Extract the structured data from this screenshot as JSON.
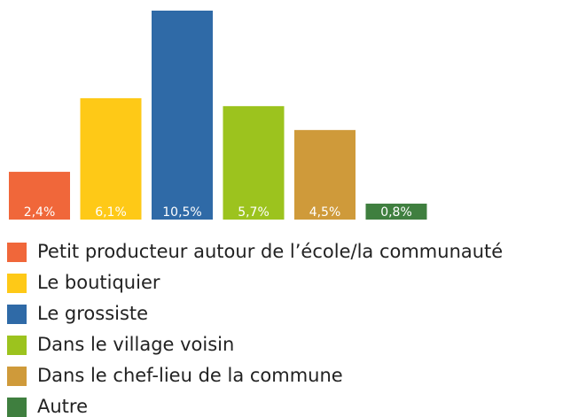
{
  "chart_data": {
    "type": "bar",
    "categories": [
      "Petit producteur autour de l’école/la communauté",
      "Le boutiquier",
      "Le grossiste",
      "Dans le village voisin",
      "Dans le chef-lieu de la commune",
      "Autre"
    ],
    "values": [
      2.4,
      6.1,
      10.5,
      5.7,
      4.5,
      0.8
    ],
    "value_labels": [
      "2,4%",
      "6,1%",
      "10,5%",
      "5,7%",
      "4,5%",
      "0,8%"
    ],
    "colors": [
      "#f0673a",
      "#fec917",
      "#2f6aa7",
      "#9cc31e",
      "#cf9a3a",
      "#3f7f3f"
    ]
  }
}
